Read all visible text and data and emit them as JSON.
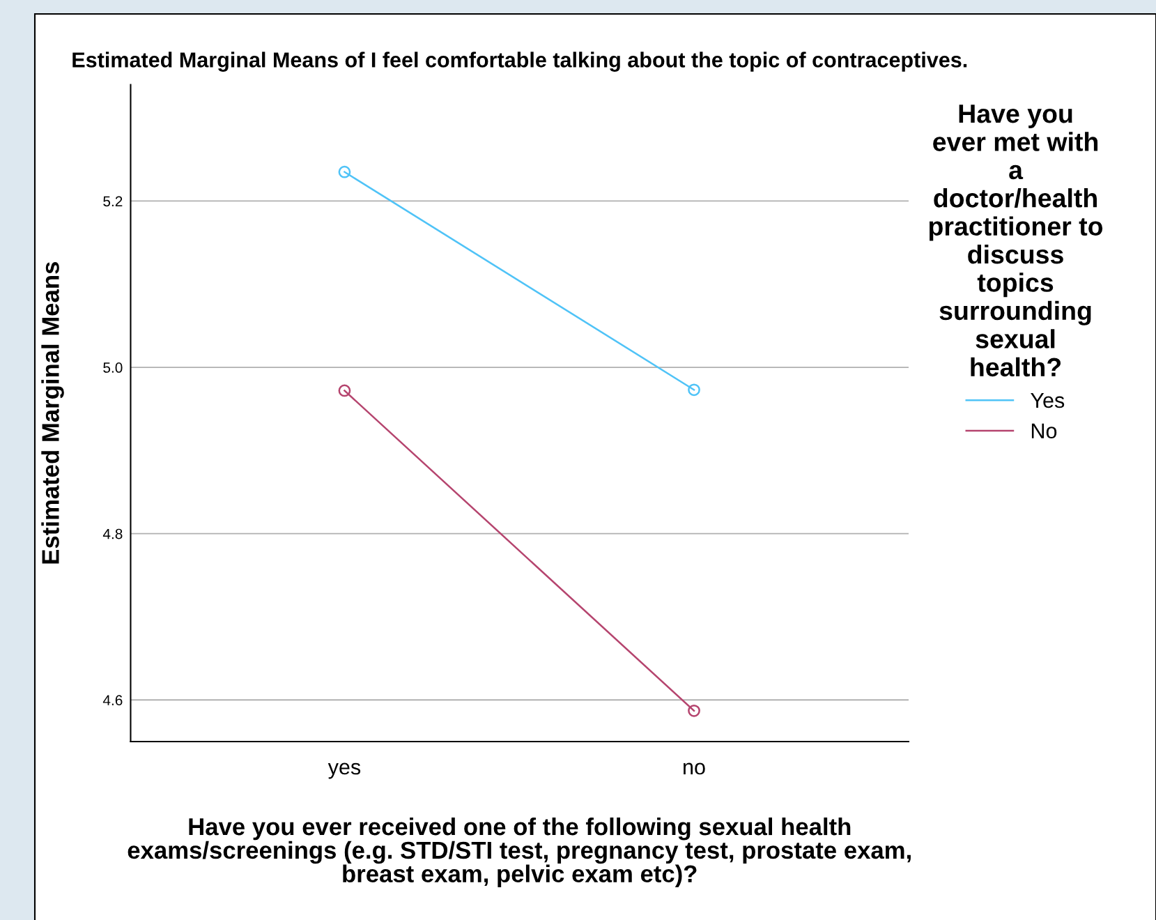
{
  "chart_data": {
    "type": "line",
    "title": "Estimated Marginal Means of I feel comfortable talking about the topic of contraceptives.",
    "xlabel": "Have you ever received one of the following sexual health\nexams/screenings (e.g. STD/STI test, pregnancy test, prostate exam,\nbreast exam, pelvic exam etc)?",
    "ylabel": "Estimated Marginal Means",
    "legend_title": "Have you\never met with\na\ndoctor/health\npractitioner to\ndiscuss\ntopics\nsurrounding\nsexual\nhealth?",
    "categories": [
      "yes",
      "no"
    ],
    "series": [
      {
        "name": "Yes",
        "color": "#4fc3f7",
        "values": [
          5.235,
          4.973
        ]
      },
      {
        "name": "No",
        "color": "#b5446e",
        "values": [
          4.972,
          4.587
        ]
      }
    ],
    "ylim": [
      4.55,
      5.34
    ],
    "yticks": [
      {
        "value": 4.6,
        "label": "4.6"
      },
      {
        "value": 4.8,
        "label": "4.8"
      },
      {
        "value": 5.0,
        "label": "5.0"
      },
      {
        "value": 5.2,
        "label": "5.2"
      }
    ],
    "grid": "y",
    "legend": "right",
    "marker": "circle",
    "line_style": "solid"
  }
}
